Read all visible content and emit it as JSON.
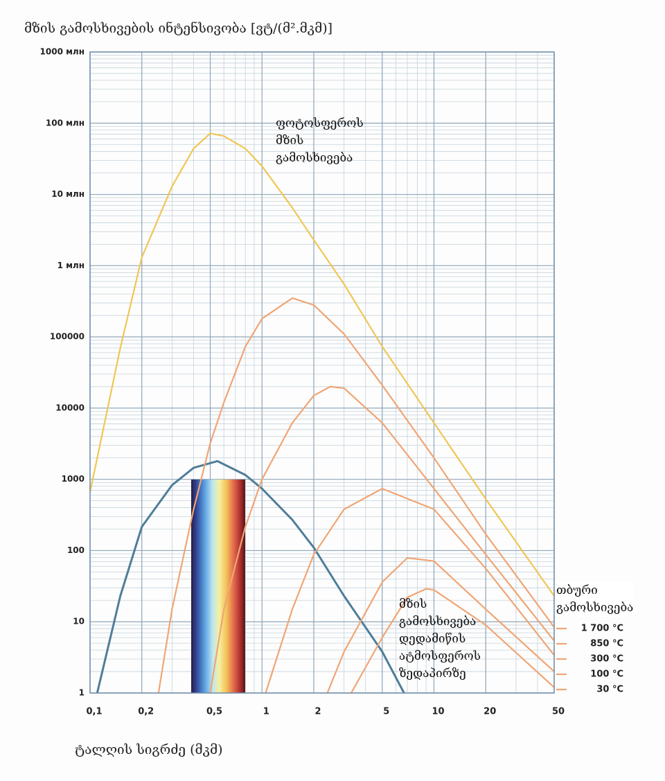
{
  "chart_data": {
    "type": "line",
    "title": "მზის გამოსხივების ინტენსივობა [ვტ/(მ².მკმ)]",
    "x_label": "ტალღის სიგრძე (მკმ)",
    "x_log": true,
    "y_log": true,
    "grid": true,
    "minor_grid": true,
    "xlim": [
      0.1,
      50
    ],
    "ylim": [
      1,
      1000000000
    ],
    "xticks": [
      {
        "value": 0.1,
        "label": "0,1"
      },
      {
        "value": 0.2,
        "label": "0,2"
      },
      {
        "value": 0.5,
        "label": "0,5"
      },
      1,
      2,
      5,
      10,
      20,
      50
    ],
    "yticks": [
      1,
      10,
      100,
      1000,
      10000,
      100000,
      {
        "value": 1000000,
        "label": "1 млн"
      },
      {
        "value": 10000000,
        "label": "10 млн"
      },
      {
        "value": 100000000,
        "label": "100 млн"
      },
      {
        "value": 1000000000,
        "label": "1000 млн"
      }
    ],
    "legend_title": "თბური გამოსხივება",
    "legend_position": "right",
    "series": [
      {
        "name": "ფოტოსფეროს მზის გამოსხივება",
        "color": "#f0c654",
        "x": [
          0.1,
          0.15,
          0.2,
          0.3,
          0.4,
          0.5,
          0.6,
          0.8,
          1,
          1.5,
          2,
          3,
          5,
          10,
          20,
          50
        ],
        "values": [
          660,
          70000,
          1300000,
          13000000,
          44000000,
          72000000,
          66000000,
          44000000,
          25000000,
          6500000,
          2300000,
          550000,
          73000,
          6200,
          530,
          23
        ]
      },
      {
        "name": "მზის გამოსხივება დედამიწის ატმოსფეროს ზედაპირზე",
        "color": "#4f7d98",
        "x": [
          0.11,
          0.15,
          0.2,
          0.3,
          0.4,
          0.55,
          0.8,
          1,
          1.5,
          2,
          3,
          5,
          6.7
        ],
        "values": [
          1,
          23,
          215,
          830,
          1450,
          1800,
          1150,
          740,
          270,
          110,
          23,
          3.8,
          1
        ]
      },
      {
        "name": "1 700 °C",
        "color": "#f0a574",
        "x": [
          0.25,
          0.3,
          0.4,
          0.5,
          0.6,
          0.8,
          1,
          1.5,
          2,
          3,
          5,
          10,
          20,
          50
        ],
        "values": [
          1,
          15,
          380,
          3200,
          12000,
          73000,
          180000,
          350000,
          280000,
          110000,
          21000,
          2000,
          170,
          8.4
        ]
      },
      {
        "name": "850 °C",
        "color": "#f0a574",
        "x": [
          0.5,
          0.6,
          0.8,
          1,
          1.5,
          2,
          2.5,
          3,
          5,
          10,
          20,
          50
        ],
        "values": [
          1,
          15,
          215,
          1000,
          6200,
          15000,
          20000,
          19000,
          6200,
          740,
          88,
          5.4
        ]
      },
      {
        "name": "300 °C",
        "color": "#f0a574",
        "x": [
          1.05,
          1.5,
          2,
          3,
          5,
          10,
          20,
          50
        ],
        "values": [
          1,
          15,
          88,
          380,
          740,
          380,
          56,
          3.4
        ]
      },
      {
        "name": "100 °C",
        "color": "#f0a574",
        "x": [
          2.4,
          3,
          5,
          7,
          10,
          20,
          50
        ],
        "values": [
          1,
          3.8,
          36,
          79,
          71,
          15,
          2
        ]
      },
      {
        "name": "30 °C",
        "color": "#f0a574",
        "x": [
          3.3,
          5,
          7,
          9,
          10,
          20,
          50
        ],
        "values": [
          1,
          6,
          22,
          29,
          28,
          9,
          1.2
        ]
      }
    ]
  }
}
